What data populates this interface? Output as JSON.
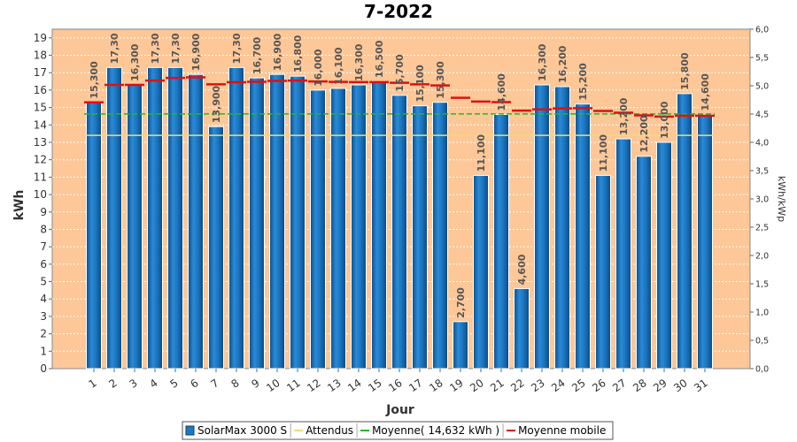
{
  "chart_data": {
    "type": "bar",
    "title": "7-2022",
    "xlabel": "Jour",
    "ylabel": "kWh",
    "y2label": "kWh/kWp",
    "ylim": [
      0,
      19.5
    ],
    "y2lim": [
      0,
      6.0
    ],
    "yticks": [
      0,
      1,
      2,
      3,
      4,
      5,
      6,
      7,
      8,
      9,
      10,
      11,
      12,
      13,
      14,
      15,
      16,
      17,
      18,
      19
    ],
    "y2ticks": [
      "0,0",
      "0,5",
      "1,0",
      "1,5",
      "2,0",
      "2,5",
      "3,0",
      "3,5",
      "4,0",
      "4,5",
      "5,0",
      "5,5",
      "6,0"
    ],
    "categories": [
      "1",
      "2",
      "3",
      "4",
      "5",
      "6",
      "7",
      "8",
      "9",
      "10",
      "11",
      "12",
      "13",
      "14",
      "15",
      "16",
      "17",
      "18",
      "19",
      "20",
      "21",
      "22",
      "23",
      "24",
      "25",
      "26",
      "27",
      "28",
      "29",
      "30",
      "31"
    ],
    "series": [
      {
        "name": "SolarMax 3000 S",
        "type": "bar",
        "color": "#1e78c0",
        "values": [
          15.3,
          17.3,
          16.3,
          17.3,
          17.3,
          16.9,
          13.9,
          17.3,
          16.7,
          16.9,
          16.8,
          16.0,
          16.1,
          16.3,
          16.5,
          15.7,
          15.1,
          15.3,
          2.7,
          11.1,
          14.6,
          4.6,
          16.3,
          16.2,
          15.2,
          11.1,
          13.2,
          12.2,
          13.0,
          15.8,
          14.6
        ],
        "labels": [
          "15,300",
          "17,30",
          "16,300",
          "17,30",
          "17,30",
          "16,900",
          "13,900",
          "17,30",
          "16,700",
          "16,900",
          "16,800",
          "16,000",
          "16,100",
          "16,300",
          "16,500",
          "15,700",
          "15,100",
          "15,300",
          "2,700",
          "11,100",
          "14,600",
          "4,600",
          "16,300",
          "16,200",
          "15,200",
          "11,100",
          "13,200",
          "12,200",
          "13,000",
          "15,800",
          "14,600"
        ]
      },
      {
        "name": "Attendus",
        "type": "line",
        "color": "#e8e070",
        "values": [
          13.4,
          13.4,
          13.4,
          13.4,
          13.4,
          13.4,
          13.4,
          13.4,
          13.4,
          13.4,
          13.4,
          13.4,
          13.4,
          13.4,
          13.4,
          13.4,
          13.4,
          13.4,
          13.4,
          13.4,
          13.4,
          13.4,
          13.4,
          13.4,
          13.4,
          13.4,
          13.4,
          13.4,
          13.4,
          13.4,
          13.4
        ]
      },
      {
        "name": "Moyenne( 14,632 kWh )",
        "type": "line",
        "color": "#22bb22",
        "values": [
          14.632,
          14.632,
          14.632,
          14.632,
          14.632,
          14.632,
          14.632,
          14.632,
          14.632,
          14.632,
          14.632,
          14.632,
          14.632,
          14.632,
          14.632,
          14.632,
          14.632,
          14.632,
          14.632,
          14.632,
          14.632,
          14.632,
          14.632,
          14.632,
          14.632,
          14.632,
          14.632,
          14.632,
          14.632,
          14.632,
          14.632
        ]
      },
      {
        "name": "Moyenne mobile",
        "type": "line",
        "color": "#dd1111",
        "values": [
          15.3,
          16.3,
          16.3,
          16.55,
          16.7,
          16.73,
          16.33,
          16.45,
          16.48,
          16.53,
          16.55,
          16.5,
          16.47,
          16.46,
          16.46,
          16.42,
          16.33,
          16.27,
          15.56,
          15.34,
          15.31,
          14.82,
          14.89,
          14.95,
          14.96,
          14.8,
          14.7,
          14.55,
          14.48,
          14.53,
          14.53
        ]
      }
    ],
    "grid": true,
    "legend": "bottom"
  },
  "legend": {
    "items": [
      {
        "label": "SolarMax 3000 S",
        "color": "#1e78c0",
        "kind": "box"
      },
      {
        "label": "Attendus",
        "color": "#e8e070",
        "kind": "line"
      },
      {
        "label": "Moyenne( 14,632 kWh )",
        "color": "#22bb22",
        "kind": "line"
      },
      {
        "label": "Moyenne mobile",
        "color": "#dd1111",
        "kind": "line"
      }
    ]
  }
}
